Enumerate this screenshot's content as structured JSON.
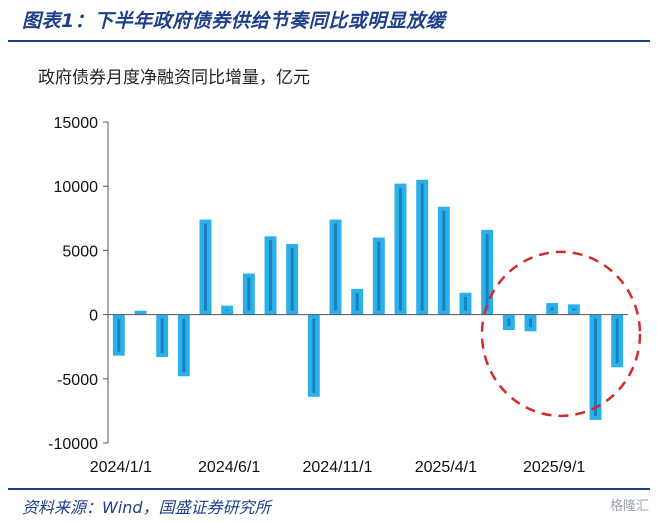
{
  "figure": {
    "title": "图表1：下半年政府债券供给节奏同比或明显放缓",
    "source": "资料来源：Wind，国盛证券研究所",
    "watermark": "格隆汇"
  },
  "colors": {
    "bar": "#2bb0ea",
    "bar_center": "#1478b8",
    "highlight": "#d42a2a",
    "axis": "#555555"
  },
  "chart_data": {
    "type": "bar",
    "title": "",
    "ylabel": "政府债券月度净融资同比增量，亿元",
    "xlabel": "",
    "ylim": [
      -10000,
      15000
    ],
    "yticks": [
      -10000,
      -5000,
      0,
      5000,
      10000,
      15000
    ],
    "categories": [
      "2024/1/1",
      "2024/2/1",
      "2024/3/1",
      "2024/4/1",
      "2024/5/1",
      "2024/6/1",
      "2024/7/1",
      "2024/8/1",
      "2024/9/1",
      "2024/10/1",
      "2024/11/1",
      "2024/12/1",
      "2025/1/1",
      "2025/2/1",
      "2025/3/1",
      "2025/4/1",
      "2025/5/1",
      "2025/6/1",
      "2025/7/1",
      "2025/8/1",
      "2025/9/1",
      "2025/10/1",
      "2025/11/1",
      "2025/12/1"
    ],
    "xtick_labels": [
      "2024/1/1",
      "2024/6/1",
      "2024/11/1",
      "2025/4/1",
      "2025/9/1"
    ],
    "values": [
      -3200,
      300,
      -3300,
      -4800,
      7400,
      700,
      3200,
      6100,
      5500,
      -6400,
      7400,
      2000,
      6000,
      10200,
      10500,
      8400,
      1700,
      6600,
      -1200,
      -1300,
      900,
      800,
      -8200,
      -4100
    ],
    "grid": false,
    "legend": "none",
    "annotation": "dashed-circle-highlight"
  }
}
